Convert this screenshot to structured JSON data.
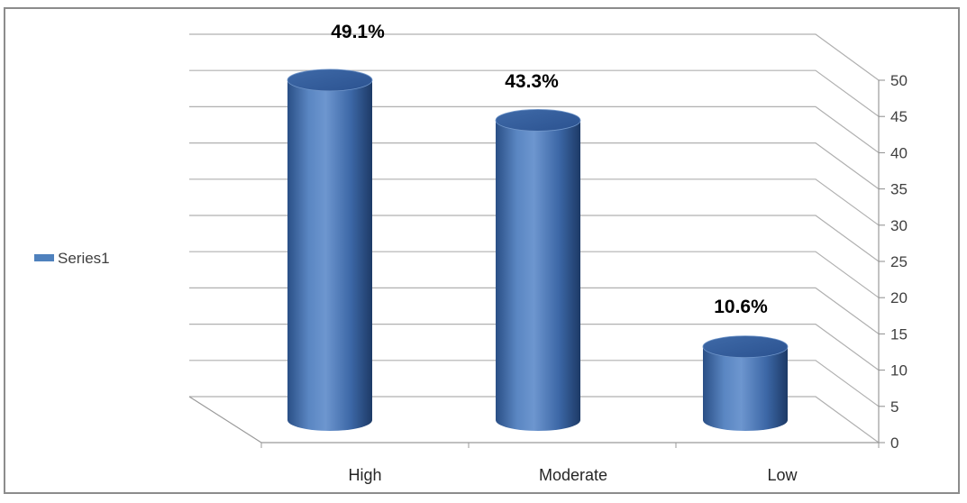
{
  "chart_data": {
    "type": "bar",
    "style": "3d-cylinder",
    "categories": [
      "High",
      "Moderate",
      "Low"
    ],
    "series": [
      {
        "name": "Series1",
        "values": [
          49.1,
          43.3,
          10.6
        ],
        "color": "#4f81bd"
      }
    ],
    "data_labels": [
      "49.1%",
      "43.3%",
      "10.6%"
    ],
    "y_ticks": [
      "0",
      "5",
      "10",
      "15",
      "20",
      "25",
      "30",
      "35",
      "40",
      "45",
      "50"
    ],
    "ylim": [
      0,
      50
    ],
    "y_axis_side": "right",
    "grid": true,
    "legend": {
      "position": "left",
      "entries": [
        "Series1"
      ]
    },
    "colors": {
      "bar": "#4f81bd",
      "bar_dark": "#1f3f6e",
      "bar_light": "#7fa6d8",
      "gridline": "#b0b0b0"
    }
  }
}
